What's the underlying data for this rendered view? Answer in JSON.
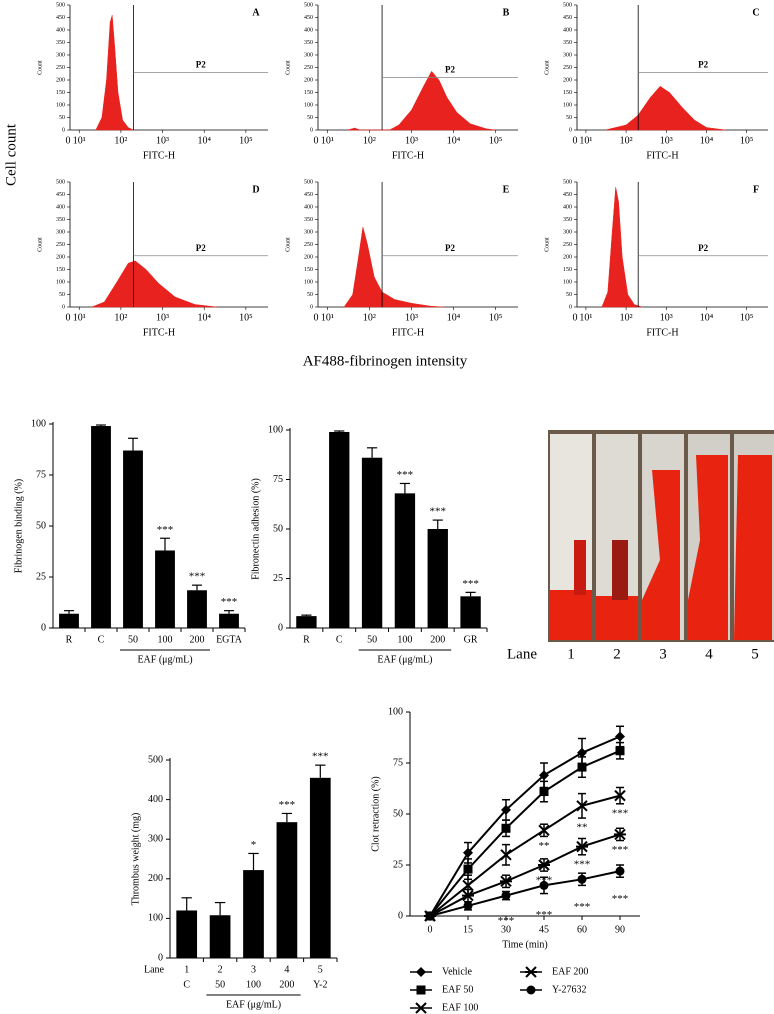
{
  "figure": {
    "y_label": "Cell count",
    "x_label": "AF488-fibrinogen intensity"
  },
  "photo": {
    "lane_label": "Lane",
    "lanes": [
      "1",
      "2",
      "3",
      "4",
      "5"
    ]
  },
  "chart_data": [
    {
      "type": "area",
      "panel": "A",
      "x": [
        25,
        35,
        45,
        55,
        62,
        70,
        85,
        110,
        150,
        200
      ],
      "values": [
        0,
        50,
        200,
        430,
        460,
        350,
        150,
        40,
        10,
        0
      ],
      "color": "#e8231f",
      "xscale": "log",
      "xlim": [
        6,
        340000
      ],
      "xticks": [
        {
          "value": 10,
          "label": "10¹"
        },
        {
          "value": 100,
          "label": "10²"
        },
        {
          "value": 1000,
          "label": "10³"
        },
        {
          "value": 10000,
          "label": "10⁴"
        },
        {
          "value": 100000,
          "label": "10⁵"
        }
      ],
      "origin_label": "0",
      "ylim": [
        0,
        500
      ],
      "yticks": [
        0,
        50,
        100,
        150,
        200,
        250,
        300,
        350,
        400,
        450,
        500
      ],
      "x_label": "FITC-H",
      "y_label": "Count",
      "gate": {
        "label": "P2",
        "x": 200,
        "y": 230
      }
    },
    {
      "type": "area",
      "panel": "B",
      "x": [
        30,
        45,
        60,
        300,
        500,
        1000,
        2000,
        3000,
        4500,
        7000,
        12000,
        25000,
        60000,
        100000
      ],
      "values": [
        0,
        8,
        0,
        0,
        20,
        80,
        180,
        235,
        200,
        130,
        70,
        25,
        5,
        0
      ],
      "color": "#e8231f",
      "xscale": "log",
      "xlim": [
        6,
        340000
      ],
      "xticks": [
        {
          "value": 10,
          "label": "10¹"
        },
        {
          "value": 100,
          "label": "10²"
        },
        {
          "value": 1000,
          "label": "10³"
        },
        {
          "value": 10000,
          "label": "10⁴"
        },
        {
          "value": 100000,
          "label": "10⁵"
        }
      ],
      "origin_label": "0",
      "ylim": [
        0,
        500
      ],
      "yticks": [
        0,
        50,
        100,
        150,
        200,
        250,
        300,
        350,
        400,
        450,
        500
      ],
      "x_label": "FITC-H",
      "y_label": "Count",
      "gate": {
        "label": "P2",
        "x": 200,
        "y": 210
      }
    },
    {
      "type": "area",
      "panel": "C",
      "x": [
        30,
        100,
        200,
        400,
        700,
        1200,
        2500,
        5000,
        10000,
        30000
      ],
      "values": [
        0,
        20,
        60,
        130,
        175,
        150,
        90,
        40,
        10,
        0
      ],
      "color": "#e8231f",
      "xscale": "log",
      "xlim": [
        6,
        340000
      ],
      "xticks": [
        {
          "value": 10,
          "label": "10¹"
        },
        {
          "value": 100,
          "label": "10²"
        },
        {
          "value": 1000,
          "label": "10³"
        },
        {
          "value": 10000,
          "label": "10⁴"
        },
        {
          "value": 100000,
          "label": "10⁵"
        }
      ],
      "origin_label": "0",
      "ylim": [
        0,
        500
      ],
      "yticks": [
        0,
        50,
        100,
        150,
        200,
        250,
        300,
        350,
        400,
        450,
        500
      ],
      "x_label": "FITC-H",
      "y_label": "Count",
      "gate": {
        "label": "P2",
        "x": 200,
        "y": 230
      }
    },
    {
      "type": "area",
      "panel": "D",
      "x": [
        20,
        40,
        80,
        150,
        220,
        400,
        800,
        2000,
        6000,
        20000
      ],
      "values": [
        0,
        20,
        100,
        175,
        185,
        150,
        95,
        40,
        10,
        0
      ],
      "color": "#e8231f",
      "xscale": "log",
      "xlim": [
        6,
        340000
      ],
      "xticks": [
        {
          "value": 10,
          "label": "10¹"
        },
        {
          "value": 100,
          "label": "10²"
        },
        {
          "value": 1000,
          "label": "10³"
        },
        {
          "value": 10000,
          "label": "10⁴"
        },
        {
          "value": 100000,
          "label": "10⁵"
        }
      ],
      "origin_label": "0",
      "ylim": [
        0,
        500
      ],
      "yticks": [
        0,
        50,
        100,
        150,
        200,
        250,
        300,
        350,
        400,
        450,
        500
      ],
      "x_label": "FITC-H",
      "y_label": "Count",
      "gate": {
        "label": "P2",
        "x": 200,
        "y": 205
      }
    },
    {
      "type": "area",
      "panel": "E",
      "x": [
        25,
        40,
        55,
        70,
        90,
        130,
        200,
        400,
        1000,
        3000,
        6000
      ],
      "values": [
        0,
        50,
        200,
        320,
        250,
        120,
        60,
        30,
        15,
        3,
        0
      ],
      "color": "#e8231f",
      "xscale": "log",
      "xlim": [
        6,
        340000
      ],
      "xticks": [
        {
          "value": 10,
          "label": "10¹"
        },
        {
          "value": 100,
          "label": "10²"
        },
        {
          "value": 1000,
          "label": "10³"
        },
        {
          "value": 10000,
          "label": "10⁴"
        },
        {
          "value": 100000,
          "label": "10⁵"
        }
      ],
      "origin_label": "0",
      "ylim": [
        0,
        500
      ],
      "yticks": [
        0,
        50,
        100,
        150,
        200,
        250,
        300,
        350,
        400,
        450,
        500
      ],
      "x_label": "FITC-H",
      "y_label": "Count",
      "gate": {
        "label": "P2",
        "x": 200,
        "y": 205
      }
    },
    {
      "type": "area",
      "panel": "F",
      "x": [
        25,
        35,
        45,
        55,
        65,
        80,
        110,
        160,
        250
      ],
      "values": [
        0,
        60,
        300,
        480,
        420,
        200,
        50,
        10,
        0
      ],
      "color": "#e8231f",
      "xscale": "log",
      "xlim": [
        6,
        340000
      ],
      "xticks": [
        {
          "value": 10,
          "label": "10¹"
        },
        {
          "value": 100,
          "label": "10²"
        },
        {
          "value": 1000,
          "label": "10³"
        },
        {
          "value": 10000,
          "label": "10⁴"
        },
        {
          "value": 100000,
          "label": "10⁵"
        }
      ],
      "origin_label": "0",
      "ylim": [
        0,
        500
      ],
      "yticks": [
        0,
        50,
        100,
        150,
        200,
        250,
        300,
        350,
        400,
        450,
        500
      ],
      "x_label": "FITC-H",
      "y_label": "Count",
      "gate": {
        "label": "P2",
        "x": 200,
        "y": 205
      }
    },
    {
      "type": "bar",
      "y_label": "Fibrinogen binding (%)",
      "categories": [
        "R",
        "C",
        "50",
        "100",
        "200",
        "EGTA"
      ],
      "values": [
        7,
        99,
        87,
        38,
        18.5,
        7
      ],
      "errors": [
        1.5,
        0.5,
        6,
        6,
        2.5,
        1.5
      ],
      "significance": [
        null,
        null,
        null,
        "***",
        "***",
        "***"
      ],
      "group": {
        "label": "EAF (μg/mL)",
        "from": 2,
        "to": 4
      },
      "ylim": [
        0,
        100
      ],
      "yticks": [
        0,
        25,
        50,
        75,
        100
      ],
      "color": "#000000"
    },
    {
      "type": "bar",
      "y_label": "Fibronectin adhesion (%)",
      "categories": [
        "R",
        "C",
        "50",
        "100",
        "200",
        "GR"
      ],
      "values": [
        6,
        99,
        86,
        68,
        50,
        16
      ],
      "errors": [
        0.5,
        0.5,
        5,
        5,
        4.5,
        2
      ],
      "significance": [
        null,
        null,
        null,
        "***",
        "***",
        "***"
      ],
      "group": {
        "label": "EAF (μg/mL)",
        "from": 2,
        "to": 4
      },
      "ylim": [
        0,
        100
      ],
      "yticks": [
        0,
        25,
        50,
        75,
        100
      ],
      "color": "#000000"
    },
    {
      "type": "bar",
      "y_label": "Thrombus weight (mg)",
      "lane_label": "Lane",
      "lanes": [
        "1",
        "2",
        "3",
        "4",
        "5"
      ],
      "categories": [
        "C",
        "50",
        "100",
        "200",
        "Y-2"
      ],
      "values": [
        120,
        108,
        222,
        343,
        455
      ],
      "errors": [
        32,
        32,
        42,
        22,
        32
      ],
      "significance": [
        null,
        null,
        "*",
        "***",
        "***"
      ],
      "group": {
        "label": "EAF (μg/mL)",
        "from": 1,
        "to": 3
      },
      "ylim": [
        0,
        500
      ],
      "yticks": [
        0,
        100,
        200,
        300,
        400,
        500
      ],
      "color": "#000000"
    },
    {
      "type": "line",
      "x_label": "Time (min)",
      "y_label": "Clot retraction (%)",
      "categories": [
        "0",
        "15",
        "30",
        "45",
        "60",
        "90"
      ],
      "ylim": [
        0,
        100
      ],
      "yticks": [
        0,
        25,
        50,
        75,
        100
      ],
      "series": [
        {
          "name": "Vehicle",
          "marker": "diamond",
          "color": "#000000",
          "values": [
            0,
            31,
            52,
            69,
            80,
            88
          ],
          "errors": [
            0,
            5,
            5,
            6,
            7,
            5
          ]
        },
        {
          "name": "EAF 50",
          "marker": "square",
          "color": "#000000",
          "values": [
            0,
            23,
            43,
            61,
            73,
            81
          ],
          "errors": [
            0,
            5,
            4,
            5,
            5,
            4
          ]
        },
        {
          "name": "EAF 100",
          "marker": "x",
          "color": "#000000",
          "values": [
            0,
            15,
            30,
            42,
            54,
            59
          ],
          "errors": [
            0,
            5,
            5,
            3,
            6,
            4
          ]
        },
        {
          "name": "EAF 200",
          "marker": "asterisk",
          "color": "#000000",
          "values": [
            0,
            10,
            17,
            25,
            34,
            40
          ],
          "errors": [
            0,
            3,
            3,
            3,
            4,
            3
          ]
        },
        {
          "name": "Y-27632",
          "marker": "circle",
          "color": "#000000",
          "values": [
            0,
            5,
            10,
            15,
            18,
            22
          ],
          "errors": [
            0,
            2,
            2,
            4,
            3,
            3
          ]
        }
      ],
      "annotations": [
        {
          "series": 4,
          "index": 2,
          "text": "***"
        },
        {
          "series": 2,
          "index": 3,
          "text": "**"
        },
        {
          "series": 3,
          "index": 3,
          "text": "***"
        },
        {
          "series": 4,
          "index": 3,
          "text": "***"
        },
        {
          "series": 2,
          "index": 4,
          "text": "**"
        },
        {
          "series": 3,
          "index": 4,
          "text": "***"
        },
        {
          "series": 4,
          "index": 4,
          "text": "***"
        },
        {
          "series": 2,
          "index": 5,
          "text": "***"
        },
        {
          "series": 3,
          "index": 5,
          "text": "***"
        },
        {
          "series": 4,
          "index": 5,
          "text": "***"
        }
      ]
    }
  ]
}
